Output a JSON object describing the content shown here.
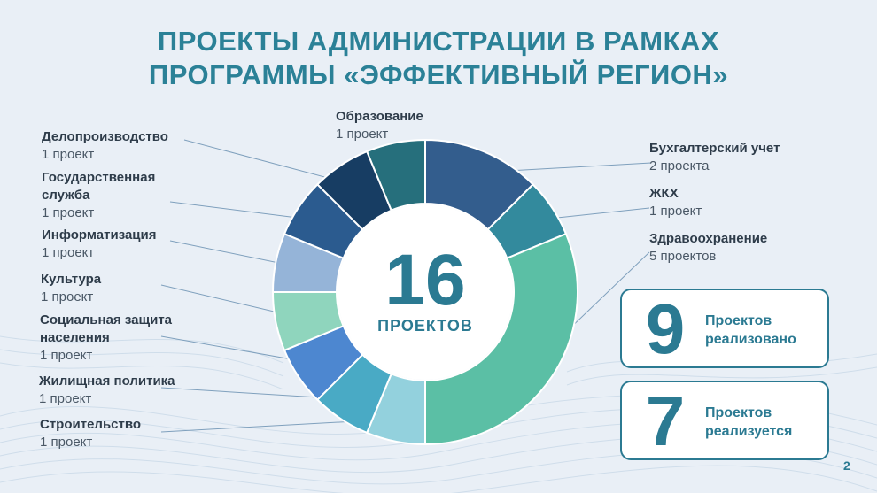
{
  "title": {
    "line1": "ПРОЕКТЫ АДМИНИСТРАЦИИ В РАМКАХ",
    "line2": "ПРОГРАММЫ «ЭФФЕКТИВНЫЙ РЕГИОН»"
  },
  "center": {
    "total": "16",
    "label": "ПРОЕКТОВ"
  },
  "chart_data": {
    "type": "pie",
    "donut": true,
    "total": 16,
    "segments": [
      {
        "name": "Бухгалтерский учет",
        "value": 2,
        "label": "2 проекта",
        "color": "#335d8d"
      },
      {
        "name": "ЖКХ",
        "value": 1,
        "label": "1 проект",
        "color": "#338a9d"
      },
      {
        "name": "Здравоохранение",
        "value": 5,
        "label": "5 проектов",
        "color": "#5bbfa5"
      },
      {
        "name": "Строительство",
        "value": 1,
        "label": "1 проект",
        "color": "#93d1dd"
      },
      {
        "name": "Жилищная политика",
        "value": 1,
        "label": "1 проект",
        "color": "#49aac5"
      },
      {
        "name": "Социальная защита населения",
        "value": 1,
        "label": "1 проект",
        "color": "#4d87d0"
      },
      {
        "name": "Культура",
        "value": 1,
        "label": "1 проект",
        "color": "#8fd5bd"
      },
      {
        "name": "Информатизация",
        "value": 1,
        "label": "1 проект",
        "color": "#95b4d8"
      },
      {
        "name": "Государственная служба",
        "value": 1,
        "label": "1 проект",
        "color": "#2b5b8f"
      },
      {
        "name": "Делопроизводство",
        "value": 1,
        "label": "1 проект",
        "color": "#173d63"
      },
      {
        "name": "Образование",
        "value": 1,
        "label": "1 проект",
        "color": "#266f7c"
      }
    ]
  },
  "labels": {
    "obrazovanie": {
      "name": "Образование",
      "count": "1 проект"
    },
    "delo": {
      "name": "Делопроизводство",
      "count": "1 проект"
    },
    "gos1": {
      "name": "Государственная",
      "name2": "служба",
      "count": "1 проект"
    },
    "inform": {
      "name": "Информатизация",
      "count": "1 проект"
    },
    "kultura": {
      "name": "Культура",
      "count": "1 проект"
    },
    "soc1": {
      "name": "Социальная защита",
      "name2": "населения",
      "count": "1 проект"
    },
    "zhil": {
      "name": "Жилищная политика",
      "count": "1 проект"
    },
    "stroi": {
      "name": "Строительство",
      "count": "1 проект"
    },
    "buh": {
      "name": "Бухгалтерский учет",
      "count": "2 проекта"
    },
    "zhkh": {
      "name": "ЖКХ",
      "count": "1 проект"
    },
    "zdrav": {
      "name": "Здравоохранение",
      "count": "5 проектов"
    }
  },
  "stats": [
    {
      "number": "9",
      "line1": "Проектов",
      "line2": "реализовано"
    },
    {
      "number": "7",
      "line1": "Проектов",
      "line2": "реализуется"
    }
  ],
  "page_number": "2",
  "colors": {
    "accent": "#2b7a92",
    "background": "#e9eff6",
    "leader": "#7fa0bd"
  }
}
